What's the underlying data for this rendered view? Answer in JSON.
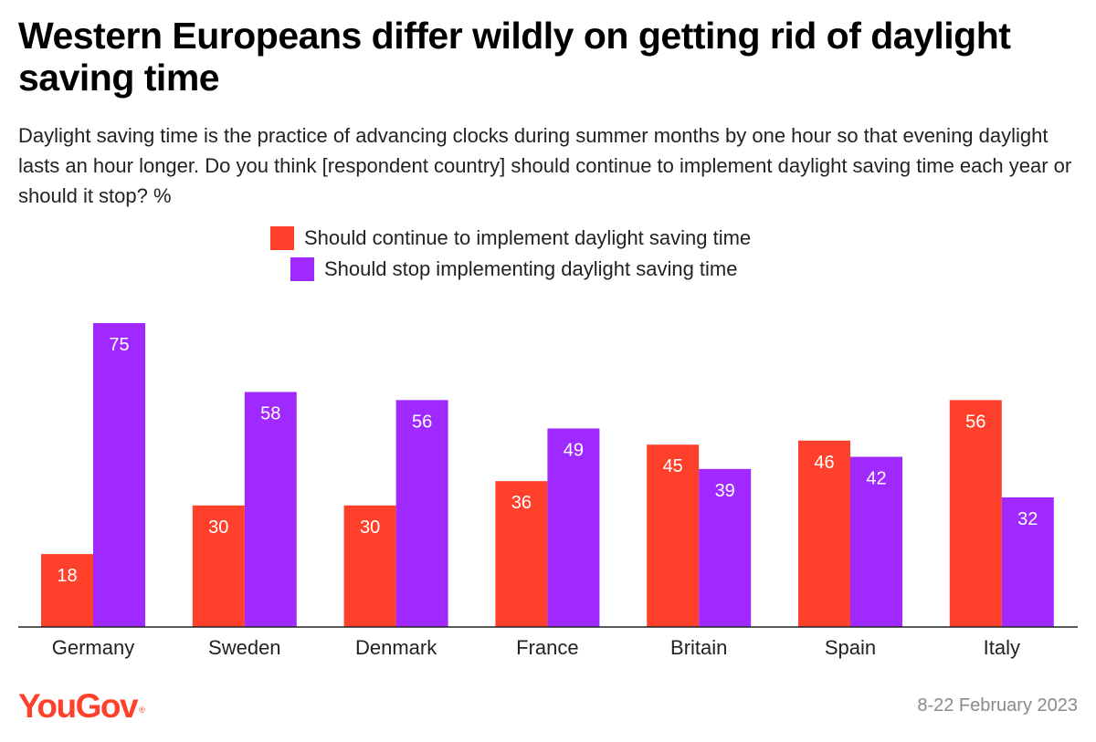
{
  "colors": {
    "continue": "#ff412c",
    "stop": "#9f29ff",
    "axis": "#222222",
    "brand": "#ff412c"
  },
  "chart_data": {
    "type": "bar",
    "title": "Western Europeans differ wildly on getting rid of daylight saving time",
    "subtitle": "Daylight saving time is the practice of advancing clocks during summer months by one hour so that evening daylight lasts an hour longer. Do you think [respondent country] should continue to implement daylight saving time each year or should it stop? %",
    "categories": [
      "Germany",
      "Sweden",
      "Denmark",
      "France",
      "Britain",
      "Spain",
      "Italy"
    ],
    "series": [
      {
        "name": "Should continue to implement daylight saving time",
        "values": [
          18,
          30,
          30,
          36,
          45,
          46,
          56
        ]
      },
      {
        "name": "Should stop implementing daylight saving time",
        "values": [
          75,
          58,
          56,
          49,
          39,
          42,
          32
        ]
      }
    ],
    "ylim": [
      0,
      75
    ],
    "xlabel": "",
    "ylabel": "",
    "grid": false,
    "legend": "top-center"
  },
  "footer": {
    "brand": "YouGov",
    "brand_mark": "®",
    "date": "8-22 February 2023"
  }
}
